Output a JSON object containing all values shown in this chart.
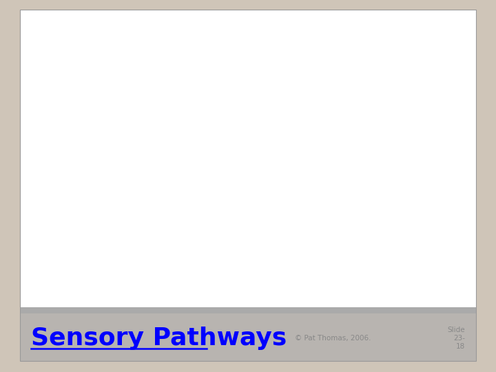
{
  "background_color": "#cfc5b8",
  "slide_bg": "#ffffff",
  "footer_bg": "#b8b4b0",
  "title_text": "Sensory Pathways",
  "title_color": "#0000ff",
  "title_fontsize": 26,
  "copyright_text": "© Pat Thomas, 2006.",
  "copyright_color": "#888888",
  "copyright_fontsize": 7.5,
  "slide_number_text": "Slide\n23-\n18",
  "slide_number_color": "#888888",
  "slide_number_fontsize": 7.5,
  "brain_color": "#e8d0b0",
  "brain_fold_color": "#d4bc98",
  "brain_edge_color": "#b09070",
  "inner_brain_color": "#7a5878",
  "tract_green": "#228844",
  "tract_red": "#e08878",
  "tract_blue": "#2244aa",
  "arrow_color": "#111111",
  "label_fontsize": 7.5,
  "legend_fontsize": 7,
  "spinal_color": "#e8cca8",
  "spinal_edge": "#b09070"
}
